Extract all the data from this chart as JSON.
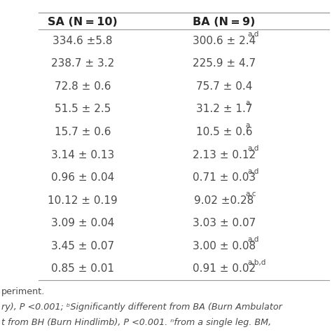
{
  "headers": [
    "SA (N = 10)",
    "BA (N = 9)"
  ],
  "rows": [
    [
      "334.6 ±5.8",
      "300.6 ± 2.4",
      "a,d"
    ],
    [
      "238.7 ± 3.2",
      "225.9 ± 4.7",
      ""
    ],
    [
      "72.8 ± 0.6",
      "75.7 ± 0.4",
      ""
    ],
    [
      "51.5 ± 2.5",
      "31.2 ± 1.7",
      "a"
    ],
    [
      "15.7 ± 0.6",
      "10.5 ± 0.6",
      "a"
    ],
    [
      "3.14 ± 0.13",
      "2.13 ± 0.12",
      "a,d"
    ],
    [
      "0.96 ± 0.04",
      "0.71 ± 0.03",
      "a,d"
    ],
    [
      "10.12 ± 0.19",
      "9.02 ±0.28",
      "a,c"
    ],
    [
      "3.09 ± 0.04",
      "3.03 ± 0.07",
      ""
    ],
    [
      "3.45 ± 0.07",
      "3.00 ± 0.08",
      "a,d"
    ],
    [
      "0.85 ± 0.01",
      "0.91 ± 0.02",
      "a,b,d"
    ]
  ],
  "footer_lines": [
    "periment.",
    "ry), P <0.001; ᵇSignificantly different from BA (Burn Ambulator",
    "t from BH (Burn Hindlimb), P <0.001. ⁿfrom a single leg. BM,"
  ],
  "bg_color": "#ffffff",
  "text_color": "#4a4a4a",
  "header_color": "#222222",
  "line_color": "#999999",
  "main_fontsize": 11.0,
  "header_fontsize": 11.5,
  "footer_fontsize": 9.2,
  "superscript_fontsize": 7.5
}
